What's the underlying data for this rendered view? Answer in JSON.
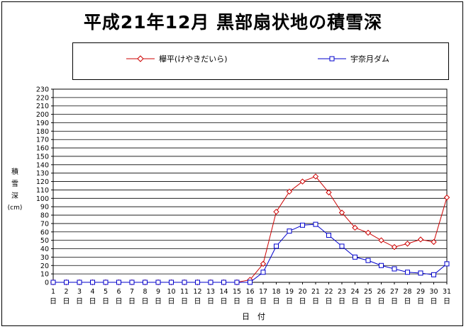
{
  "page": {
    "title": "平成21年12月  黒部扇状地の積雪深"
  },
  "chart_data": {
    "type": "line",
    "title": "平成21年12月  黒部扇状地の積雪深",
    "xlabel": "日　付",
    "ylabel": [
      "積",
      "雪",
      "深",
      "(cm)"
    ],
    "x": [
      1,
      2,
      3,
      4,
      5,
      6,
      7,
      8,
      9,
      10,
      11,
      12,
      13,
      14,
      15,
      16,
      17,
      18,
      19,
      20,
      21,
      22,
      23,
      24,
      25,
      26,
      27,
      28,
      29,
      30,
      31
    ],
    "x_tick_suffix": "日",
    "ylim": [
      0,
      230
    ],
    "ytick_step": 10,
    "grid": true,
    "legend_position": "top",
    "series": [
      {
        "name": "欅平(けやきだいら)",
        "color": "#cc0000",
        "marker": "diamond",
        "values": [
          0,
          0,
          0,
          0,
          0,
          0,
          0,
          0,
          0,
          0,
          0,
          0,
          0,
          0,
          0,
          3,
          22,
          84,
          108,
          120,
          126,
          107,
          83,
          65,
          59,
          50,
          42,
          46,
          51,
          48,
          101
        ]
      },
      {
        "name": "宇奈月ダム",
        "color": "#0000cc",
        "marker": "square",
        "values": [
          0,
          0,
          0,
          0,
          0,
          0,
          0,
          0,
          0,
          0,
          0,
          0,
          0,
          0,
          0,
          0,
          12,
          43,
          61,
          68,
          69,
          56,
          43,
          30,
          26,
          20,
          16,
          12,
          11,
          9,
          22
        ]
      }
    ]
  }
}
